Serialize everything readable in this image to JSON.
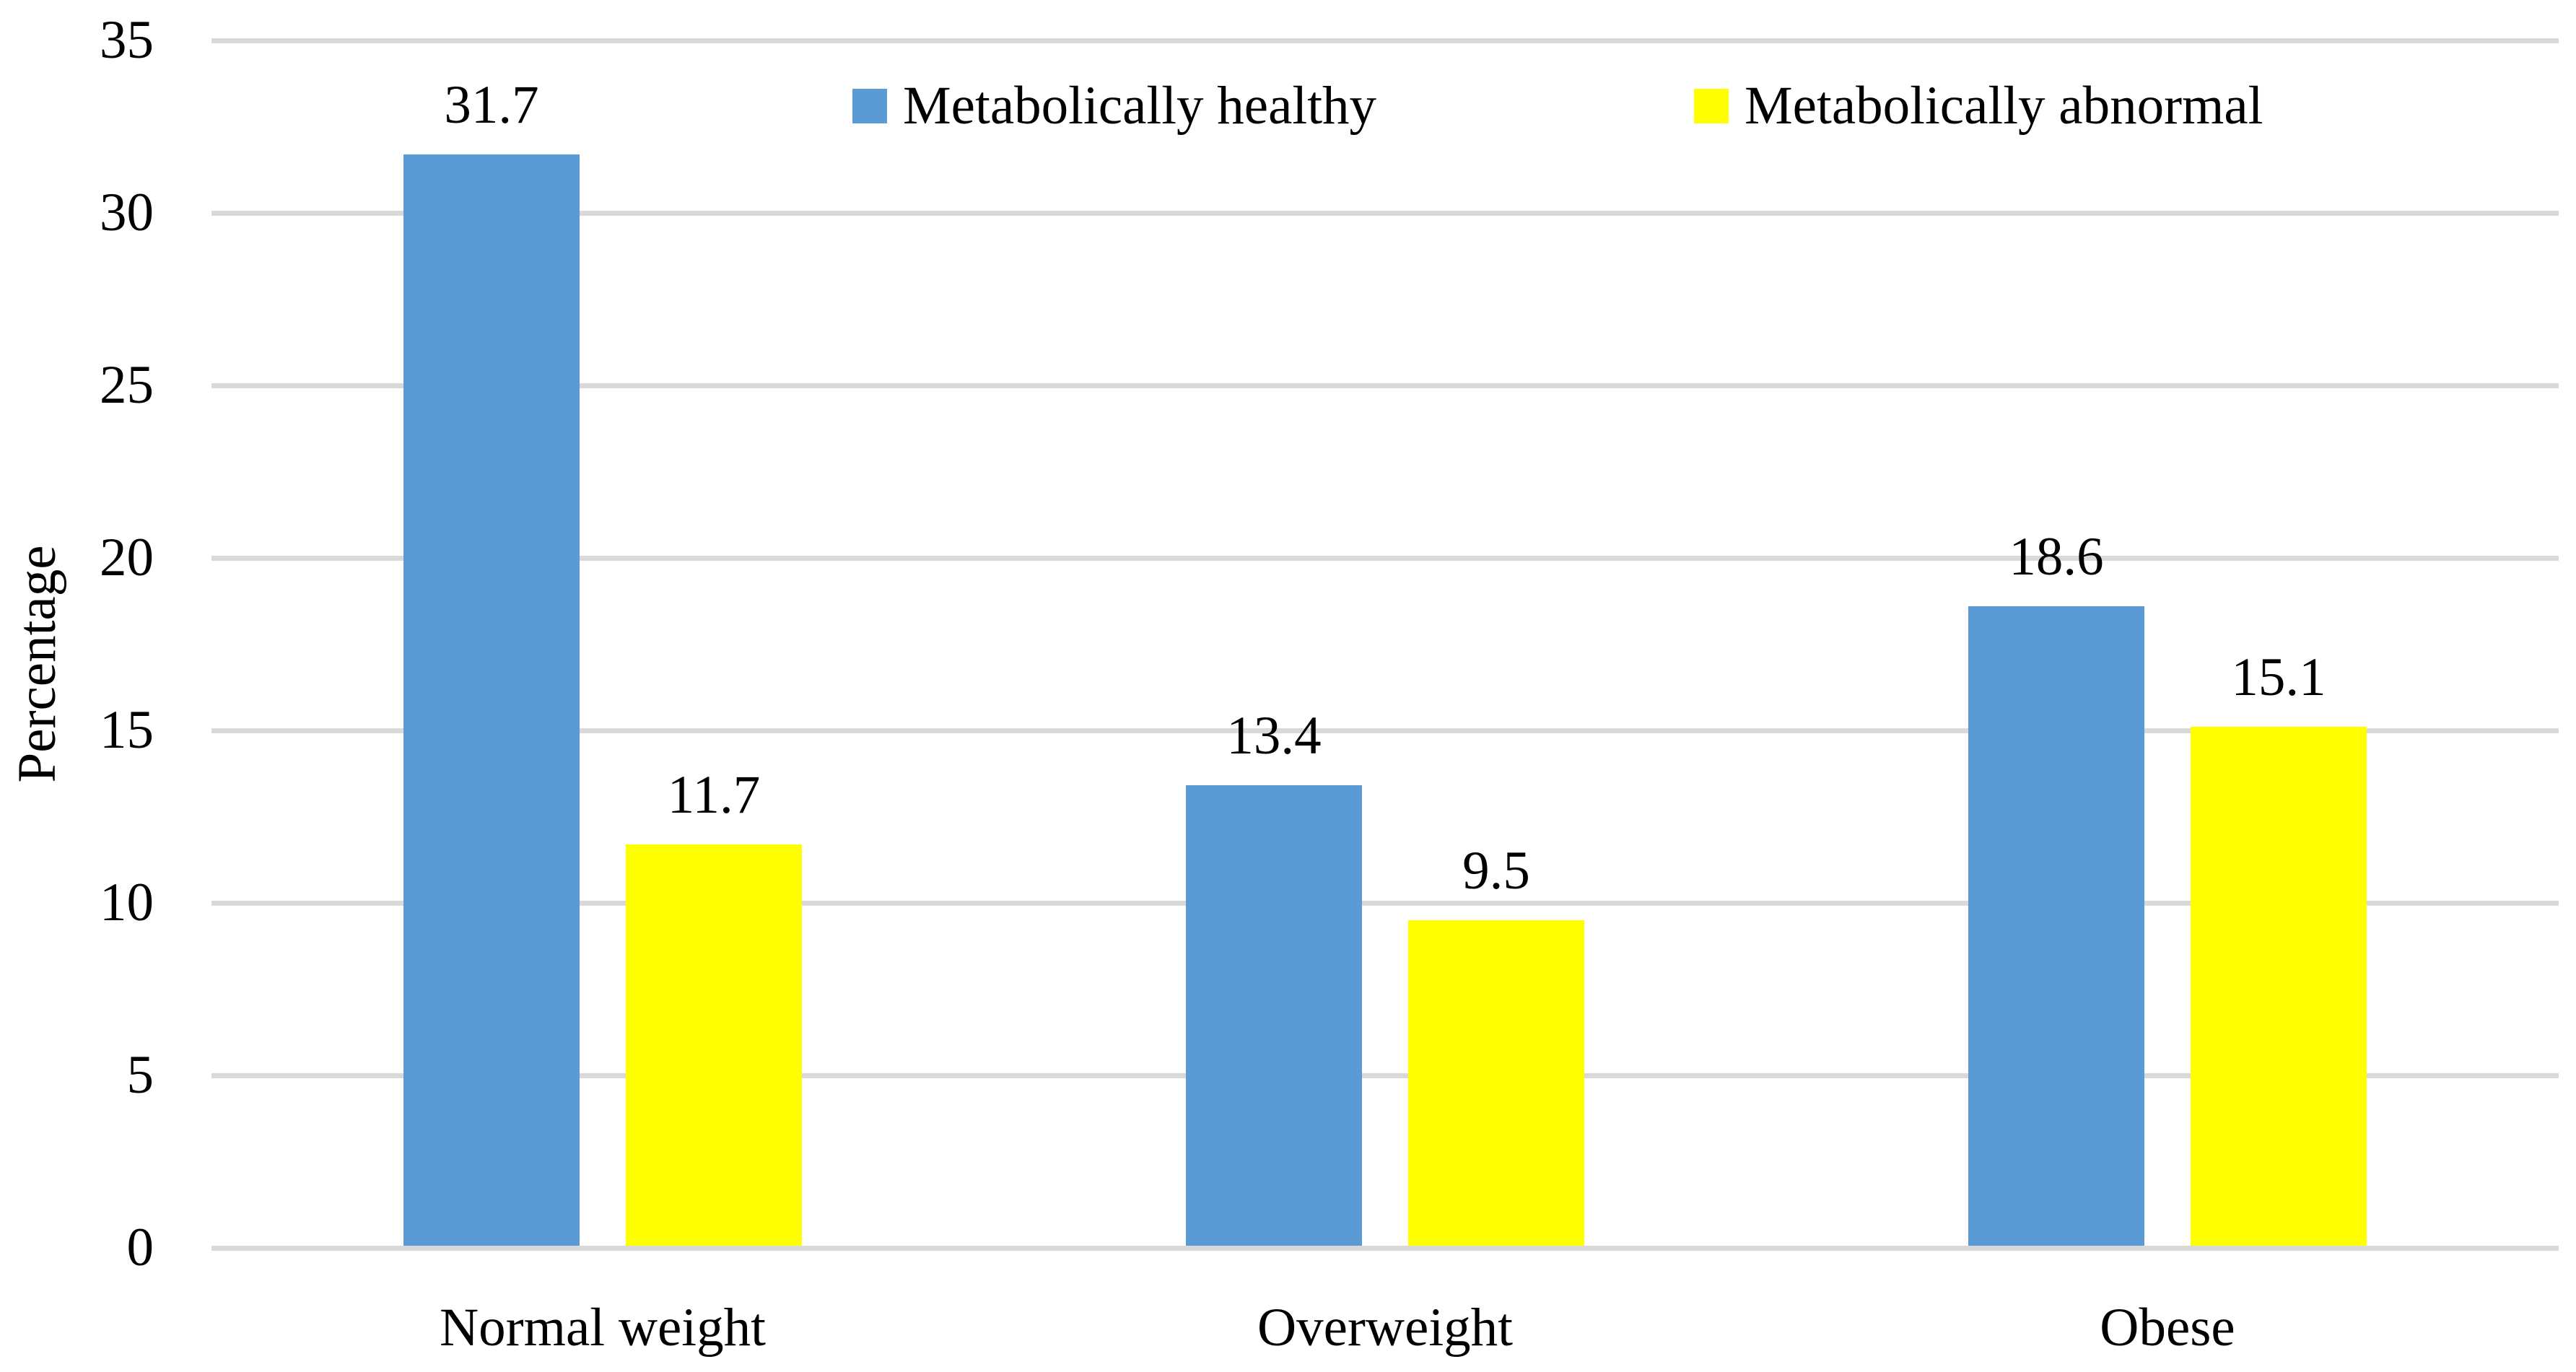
{
  "chart_data": {
    "type": "bar",
    "title": "",
    "ylabel": "Percentage",
    "xlabel": "",
    "categories": [
      "Normal weight",
      "Overweight",
      "Obese"
    ],
    "series": [
      {
        "name": "Metabolically healthy",
        "color": "#5B9BD5",
        "values": [
          31.7,
          13.4,
          18.6
        ],
        "data_labels": [
          "31.7",
          "13.4",
          "18.6"
        ]
      },
      {
        "name": "Metabolically abnormal",
        "color": "#FFFF00",
        "values": [
          11.7,
          9.5,
          15.1
        ],
        "data_labels": [
          "11.7",
          "9.5",
          "15.1"
        ]
      }
    ],
    "ylim": [
      0,
      35
    ],
    "yticks": [
      "0",
      "5",
      "10",
      "15",
      "20",
      "25",
      "30",
      "35"
    ],
    "grid": "horizontal",
    "gridline_color": "#D9D9D9",
    "axis_line_color": "#D9D9D9",
    "text_color": "#000000",
    "background_color": "#FFFFFF",
    "legend_position": "top-center",
    "data_labels_shown": true
  }
}
